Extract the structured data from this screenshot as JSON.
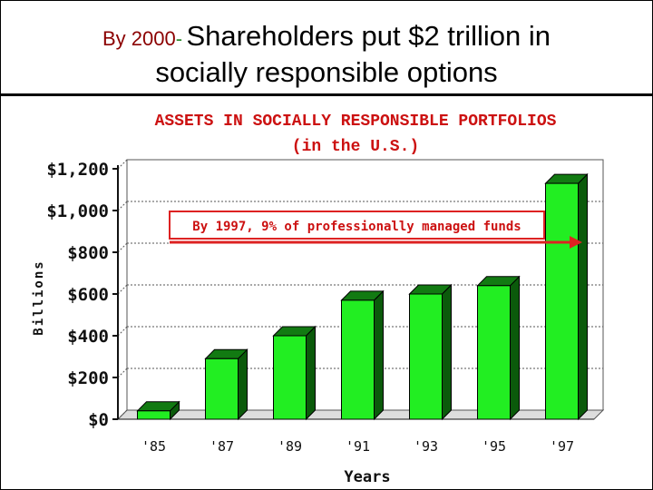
{
  "slide": {
    "lead": "By 2000",
    "dash": "-",
    "title_line1": "Shareholders put $2 trillion in",
    "title_line2": "socially responsible options"
  },
  "chart_data": {
    "type": "bar",
    "title_line1": "ASSETS IN SOCIALLY RESPONSIBLE PORTFOLIOS",
    "title_line2": "(in the U.S.)",
    "categories": [
      "'85",
      "'87",
      "'89",
      "'91",
      "'93",
      "'95",
      "'97"
    ],
    "values": [
      40,
      290,
      400,
      570,
      600,
      640,
      1130
    ],
    "ylabel": "Billions",
    "xlabel": "Years",
    "ylim": [
      0,
      1200
    ],
    "yticks": [
      {
        "value": 0,
        "label": "$0"
      },
      {
        "value": 200,
        "label": "$200"
      },
      {
        "value": 400,
        "label": "$400"
      },
      {
        "value": 600,
        "label": "$600"
      },
      {
        "value": 800,
        "label": "$800"
      },
      {
        "value": 1000,
        "label": "$1,000"
      },
      {
        "value": 1200,
        "label": "$1,200"
      }
    ],
    "grid": true,
    "annotation": {
      "text": "By 1997, 9% of professionally managed funds",
      "points_to": "'97"
    },
    "colors": {
      "bar_front": "#22ee22",
      "bar_side": "#0b5a0b",
      "bar_top": "#127a12",
      "title": "#cc1111",
      "annotation_border": "#dd2222",
      "axis_text": "#111111"
    }
  }
}
